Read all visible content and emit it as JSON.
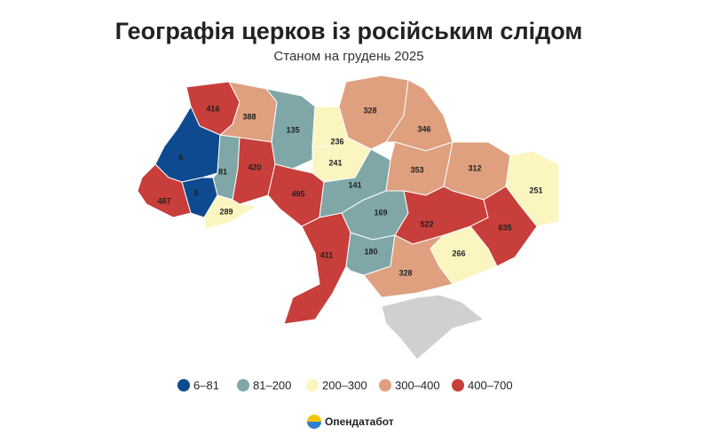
{
  "title": "Географія церков із російським слідом",
  "subtitle": "Станом на грудень 2025",
  "regions": [
    416,
    388,
    135,
    236,
    241,
    328,
    346,
    6,
    81,
    420,
    495,
    141,
    353,
    312,
    251,
    487,
    8,
    289,
    169,
    522,
    635,
    411,
    180,
    266,
    328
  ],
  "legend": [
    {
      "label": "6–81",
      "range": [
        6,
        81
      ],
      "color": "#0e4a8f"
    },
    {
      "label": "81–200",
      "range": [
        81,
        200
      ],
      "color": "#7fa7a8"
    },
    {
      "label": "200–300",
      "range": [
        200,
        300
      ],
      "color": "#fbf5c0"
    },
    {
      "label": "300–400",
      "range": [
        300,
        400
      ],
      "color": "#dfa07f"
    },
    {
      "label": "400–700",
      "range": [
        400,
        700
      ],
      "color": "#c73e3a"
    }
  ],
  "logo": "Опендатабот"
}
